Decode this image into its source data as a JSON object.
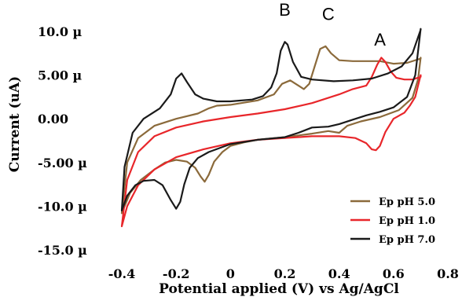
{
  "chart_data": {
    "type": "line",
    "title": "",
    "xlabel": "Potential applied (V) vs Ag/AgCl",
    "ylabel": "Current (uA)",
    "xlim": [
      -0.45,
      0.82
    ],
    "ylim": [
      -17.5,
      12.5
    ],
    "x_ticks": [
      {
        "value": -0.4,
        "label": "-0.4"
      },
      {
        "value": -0.2,
        "label": "-0.2"
      },
      {
        "value": 0.0,
        "label": "0"
      },
      {
        "value": 0.2,
        "label": "0.2"
      },
      {
        "value": 0.4,
        "label": "0.4"
      },
      {
        "value": 0.6,
        "label": "0.6"
      },
      {
        "value": 0.8,
        "label": "0.8"
      }
    ],
    "y_ticks": [
      {
        "value": 10,
        "label": "10.0 µ"
      },
      {
        "value": 5,
        "label": "5.00 µ"
      },
      {
        "value": 0,
        "label": "0.00"
      },
      {
        "value": -5,
        "label": "-5.00 µ"
      },
      {
        "value": -10,
        "label": "-10.0 µ"
      },
      {
        "value": -15,
        "label": "-15.0 µ"
      }
    ],
    "grid": false,
    "legend_position": "bottom-right",
    "annotations": [
      {
        "text": "B",
        "x": 0.2,
        "y": 11.8
      },
      {
        "text": "C",
        "x": 0.36,
        "y": 11.3
      },
      {
        "text": "A",
        "x": 0.55,
        "y": 8.4
      }
    ],
    "series": [
      {
        "name": "Ep pH 5.0",
        "color": "#8B6A3B",
        "points": [
          [
            -0.4,
            -10.8
          ],
          [
            -0.37,
            -8.5
          ],
          [
            -0.33,
            -7.0
          ],
          [
            -0.28,
            -5.8
          ],
          [
            -0.24,
            -5.0
          ],
          [
            -0.2,
            -4.7
          ],
          [
            -0.16,
            -4.9
          ],
          [
            -0.13,
            -5.6
          ],
          [
            -0.11,
            -6.6
          ],
          [
            -0.095,
            -7.2
          ],
          [
            -0.08,
            -6.4
          ],
          [
            -0.06,
            -4.9
          ],
          [
            -0.03,
            -3.8
          ],
          [
            0.0,
            -3.1
          ],
          [
            0.05,
            -2.7
          ],
          [
            0.1,
            -2.4
          ],
          [
            0.2,
            -2.1
          ],
          [
            0.3,
            -1.7
          ],
          [
            0.36,
            -1.4
          ],
          [
            0.4,
            -1.6
          ],
          [
            0.43,
            -0.8
          ],
          [
            0.48,
            -0.3
          ],
          [
            0.55,
            0.2
          ],
          [
            0.62,
            1.0
          ],
          [
            0.67,
            2.4
          ],
          [
            0.69,
            4.5
          ],
          [
            0.7,
            7.0
          ],
          [
            0.7,
            6.9
          ],
          [
            0.65,
            6.4
          ],
          [
            0.6,
            6.3
          ],
          [
            0.55,
            6.6
          ],
          [
            0.5,
            6.6
          ],
          [
            0.45,
            6.6
          ],
          [
            0.4,
            6.7
          ],
          [
            0.37,
            7.5
          ],
          [
            0.35,
            8.3
          ],
          [
            0.33,
            8.0
          ],
          [
            0.31,
            6.0
          ],
          [
            0.29,
            4.0
          ],
          [
            0.27,
            3.4
          ],
          [
            0.25,
            3.8
          ],
          [
            0.22,
            4.4
          ],
          [
            0.19,
            4.0
          ],
          [
            0.16,
            2.8
          ],
          [
            0.1,
            2.1
          ],
          [
            0.0,
            1.6
          ],
          [
            -0.05,
            1.5
          ],
          [
            -0.08,
            1.2
          ],
          [
            -0.12,
            0.6
          ],
          [
            -0.2,
            0.0
          ],
          [
            -0.28,
            -0.8
          ],
          [
            -0.34,
            -2.2
          ],
          [
            -0.38,
            -5.0
          ],
          [
            -0.4,
            -10.8
          ]
        ]
      },
      {
        "name": "Ep pH 1.0",
        "color": "#E8262A",
        "points": [
          [
            -0.4,
            -12.3
          ],
          [
            -0.38,
            -10.0
          ],
          [
            -0.34,
            -7.6
          ],
          [
            -0.28,
            -5.8
          ],
          [
            -0.2,
            -4.4
          ],
          [
            -0.1,
            -3.5
          ],
          [
            0.0,
            -2.8
          ],
          [
            0.1,
            -2.4
          ],
          [
            0.2,
            -2.2
          ],
          [
            0.3,
            -2.0
          ],
          [
            0.4,
            -2.0
          ],
          [
            0.46,
            -2.2
          ],
          [
            0.5,
            -2.8
          ],
          [
            0.52,
            -3.5
          ],
          [
            0.535,
            -3.6
          ],
          [
            0.55,
            -3.1
          ],
          [
            0.57,
            -1.5
          ],
          [
            0.6,
            0.0
          ],
          [
            0.64,
            0.7
          ],
          [
            0.66,
            1.5
          ],
          [
            0.68,
            2.5
          ],
          [
            0.7,
            5.0
          ],
          [
            0.7,
            4.8
          ],
          [
            0.67,
            4.5
          ],
          [
            0.64,
            4.5
          ],
          [
            0.61,
            4.7
          ],
          [
            0.59,
            5.4
          ],
          [
            0.57,
            6.5
          ],
          [
            0.555,
            7.0
          ],
          [
            0.54,
            6.2
          ],
          [
            0.52,
            4.8
          ],
          [
            0.5,
            3.8
          ],
          [
            0.45,
            3.4
          ],
          [
            0.4,
            2.8
          ],
          [
            0.3,
            1.8
          ],
          [
            0.2,
            1.1
          ],
          [
            0.1,
            0.6
          ],
          [
            0.0,
            0.2
          ],
          [
            -0.1,
            -0.3
          ],
          [
            -0.2,
            -1.0
          ],
          [
            -0.28,
            -2.0
          ],
          [
            -0.34,
            -3.8
          ],
          [
            -0.38,
            -7.0
          ],
          [
            -0.4,
            -12.3
          ]
        ]
      },
      {
        "name": "Ep pH 7.0",
        "color": "#1A1A1A",
        "points": [
          [
            -0.4,
            -10.5
          ],
          [
            -0.38,
            -8.8
          ],
          [
            -0.35,
            -7.6
          ],
          [
            -0.32,
            -7.1
          ],
          [
            -0.28,
            -7.0
          ],
          [
            -0.25,
            -7.6
          ],
          [
            -0.22,
            -9.3
          ],
          [
            -0.2,
            -10.3
          ],
          [
            -0.185,
            -9.5
          ],
          [
            -0.17,
            -7.5
          ],
          [
            -0.15,
            -5.6
          ],
          [
            -0.12,
            -4.5
          ],
          [
            -0.08,
            -3.8
          ],
          [
            0.0,
            -2.9
          ],
          [
            0.1,
            -2.4
          ],
          [
            0.2,
            -2.1
          ],
          [
            0.25,
            -1.6
          ],
          [
            0.3,
            -1.0
          ],
          [
            0.36,
            -0.9
          ],
          [
            0.4,
            -0.6
          ],
          [
            0.45,
            -0.1
          ],
          [
            0.5,
            0.4
          ],
          [
            0.55,
            0.8
          ],
          [
            0.6,
            1.3
          ],
          [
            0.65,
            2.5
          ],
          [
            0.68,
            5.0
          ],
          [
            0.7,
            10.3
          ],
          [
            0.7,
            10.2
          ],
          [
            0.67,
            7.5
          ],
          [
            0.63,
            6.0
          ],
          [
            0.58,
            5.2
          ],
          [
            0.52,
            4.6
          ],
          [
            0.45,
            4.4
          ],
          [
            0.38,
            4.3
          ],
          [
            0.3,
            4.5
          ],
          [
            0.26,
            4.8
          ],
          [
            0.23,
            6.5
          ],
          [
            0.21,
            8.5
          ],
          [
            0.2,
            8.8
          ],
          [
            0.185,
            7.8
          ],
          [
            0.17,
            5.2
          ],
          [
            0.15,
            3.6
          ],
          [
            0.12,
            2.6
          ],
          [
            0.08,
            2.2
          ],
          [
            0.0,
            2.0
          ],
          [
            -0.05,
            2.0
          ],
          [
            -0.1,
            2.3
          ],
          [
            -0.13,
            2.8
          ],
          [
            -0.16,
            4.2
          ],
          [
            -0.18,
            5.2
          ],
          [
            -0.2,
            4.6
          ],
          [
            -0.22,
            2.8
          ],
          [
            -0.26,
            1.2
          ],
          [
            -0.32,
            0.0
          ],
          [
            -0.36,
            -1.6
          ],
          [
            -0.39,
            -5.5
          ],
          [
            -0.4,
            -10.5
          ]
        ]
      }
    ],
    "legend_order": [
      "Ep pH 5.0",
      "Ep pH 1.0",
      "Ep pH 7.0"
    ]
  }
}
